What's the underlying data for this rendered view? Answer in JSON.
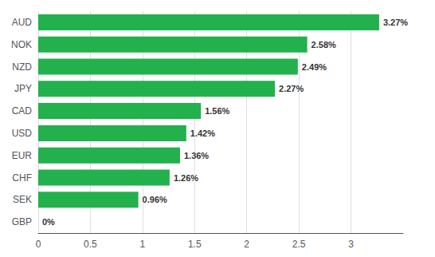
{
  "chart_data": {
    "type": "bar",
    "orientation": "horizontal",
    "categories": [
      "GBP",
      "SEK",
      "CHF",
      "EUR",
      "USD",
      "CAD",
      "JPY",
      "NZD",
      "NOK",
      "AUD"
    ],
    "values": [
      0.0,
      0.96,
      1.26,
      1.36,
      1.42,
      1.56,
      2.27,
      2.49,
      2.58,
      3.27
    ],
    "value_labels": [
      "0%",
      "0.96%",
      "1.26%",
      "1.36%",
      "1.42%",
      "1.56%",
      "2.27%",
      "2.49%",
      "2.58%",
      "3.27%"
    ],
    "data_labels": true,
    "color": "#22b14c",
    "xlim": [
      0,
      3.5
    ],
    "xticks": [
      0,
      0.5,
      1,
      1.5,
      2,
      2.5,
      3
    ],
    "grid": true
  }
}
